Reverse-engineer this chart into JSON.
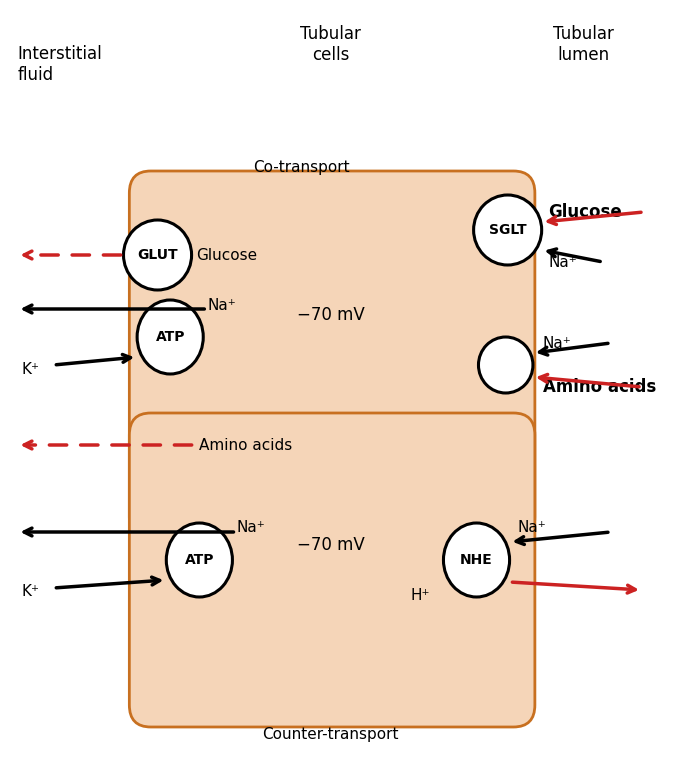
{
  "bg_color": "#ffffff",
  "cell_fill": "#f5d5b8",
  "cell_edge": "#c87020",
  "circle_fill": "#ffffff",
  "circle_edge": "#000000",
  "arrow_black": "#000000",
  "arrow_red": "#cc2222",
  "title_interstitial": "Interstitial\nfluid",
  "title_tubular_cells": "Tubular\ncells",
  "title_tubular_lumen": "Tubular\nlumen",
  "label_cotransport": "Co-transport",
  "label_countertransport": "Counter-transport",
  "mv_label": "−70 mV",
  "glut_label": "GLUT",
  "sglt_label": "SGLT",
  "atp_label": "ATP",
  "nhe_label": "NHE",
  "na_sup": "Na⁺",
  "k_sup": "K⁺",
  "h_sup": "H⁺",
  "glucose": "Glucose",
  "amino_acids": "Amino acids"
}
